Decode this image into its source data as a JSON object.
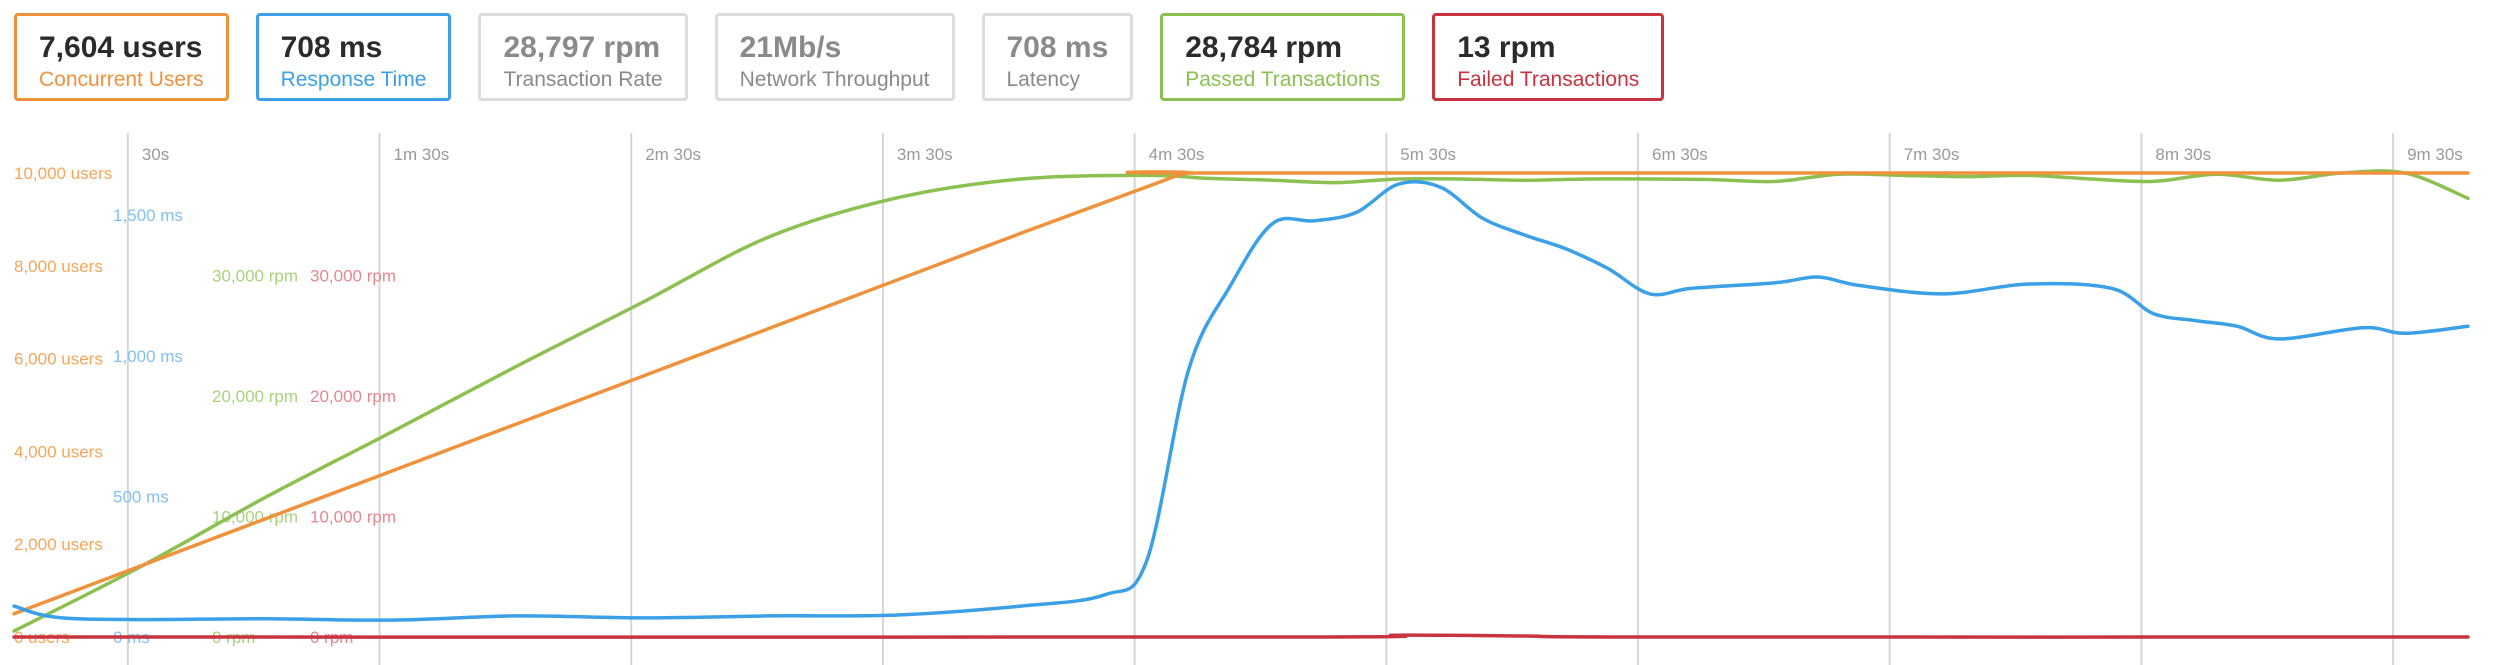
{
  "metrics": [
    {
      "value": "7,604 users",
      "label": "Concurrent Users",
      "color": "#f0913b",
      "border": "#f0913b",
      "muted": false
    },
    {
      "value": "708 ms",
      "label": "Response Time",
      "color": "#3ba0e6",
      "border": "#3ba0e6",
      "muted": false
    },
    {
      "value": "28,797 rpm",
      "label": "Transaction Rate",
      "color": "#8a8a8a",
      "border": "#dcdcdc",
      "muted": true
    },
    {
      "value": "21Mb/s",
      "label": "Network Throughput",
      "color": "#8a8a8a",
      "border": "#dcdcdc",
      "muted": true
    },
    {
      "value": "708 ms",
      "label": "Latency",
      "color": "#8a8a8a",
      "border": "#dcdcdc",
      "muted": true
    },
    {
      "value": "28,784 rpm",
      "label": "Passed Transactions",
      "color": "#8cc152",
      "border": "#8cc152",
      "muted": false
    },
    {
      "value": "13 rpm",
      "label": "Failed Transactions",
      "color": "#c9333f",
      "border": "#c9333f",
      "muted": false
    }
  ],
  "chart_data": {
    "type": "line",
    "x_unit": "seconds",
    "xlim": [
      0,
      585
    ],
    "grid": true,
    "time_ticks": [
      {
        "t": 30,
        "label": "30s"
      },
      {
        "t": 90,
        "label": "1m 30s"
      },
      {
        "t": 150,
        "label": "2m 30s"
      },
      {
        "t": 210,
        "label": "3m 30s"
      },
      {
        "t": 270,
        "label": "4m 30s"
      },
      {
        "t": 330,
        "label": "5m 30s"
      },
      {
        "t": 390,
        "label": "6m 30s"
      },
      {
        "t": 450,
        "label": "7m 30s"
      },
      {
        "t": 510,
        "label": "8m 30s"
      },
      {
        "t": 570,
        "label": "9m 30s"
      }
    ],
    "axes": {
      "users": {
        "ylim": [
          0,
          10000
        ],
        "color": "#f5a65b",
        "ticks": [
          {
            "v": 0,
            "label": "0 users"
          },
          {
            "v": 2000,
            "label": "2,000 users"
          },
          {
            "v": 4000,
            "label": "4,000 users"
          },
          {
            "v": 6000,
            "label": "6,000 users"
          },
          {
            "v": 8000,
            "label": "8,000 users"
          },
          {
            "v": 10000,
            "label": "10,000 users"
          }
        ]
      },
      "response": {
        "ylim": [
          0,
          1650
        ],
        "color": "#82c1ef",
        "ticks": [
          {
            "v": 0,
            "label": "0 ms"
          },
          {
            "v": 500,
            "label": "500 ms"
          },
          {
            "v": 1000,
            "label": "1,000 ms"
          },
          {
            "v": 1500,
            "label": "1,500 ms"
          }
        ]
      },
      "passed": {
        "ylim": [
          0,
          38500
        ],
        "color": "#a8d27a",
        "ticks": [
          {
            "v": 0,
            "label": "0 rpm"
          },
          {
            "v": 10000,
            "label": "10,000 rpm"
          },
          {
            "v": 20000,
            "label": "20,000 rpm"
          },
          {
            "v": 30000,
            "label": "30,000 rpm"
          }
        ]
      },
      "failed": {
        "ylim": [
          0,
          38500
        ],
        "color": "#e58790",
        "ticks": [
          {
            "v": 0,
            "label": "0 rpm"
          },
          {
            "v": 10000,
            "label": "10,000 rpm"
          },
          {
            "v": 20000,
            "label": "20,000 rpm"
          },
          {
            "v": 30000,
            "label": "30,000 rpm"
          }
        ]
      }
    },
    "series": [
      {
        "name": "Concurrent Users",
        "axis": "users",
        "color": "#f0913b",
        "x": [
          0,
          60,
          120,
          180,
          240,
          270,
          280,
          290,
          585
        ],
        "y": [
          500,
          2550,
          4600,
          6650,
          8700,
          9700,
          10000,
          10000,
          10000
        ]
      },
      {
        "name": "Response Time",
        "axis": "response",
        "color": "#3ba0e6",
        "x": [
          0,
          10,
          30,
          60,
          90,
          120,
          150,
          180,
          210,
          240,
          260,
          270,
          280,
          290,
          300,
          310,
          320,
          330,
          340,
          350,
          360,
          370,
          380,
          390,
          400,
          420,
          430,
          440,
          460,
          480,
          500,
          510,
          520,
          530,
          540,
          560,
          570,
          585
        ],
        "y": [
          110,
          70,
          62,
          65,
          60,
          75,
          68,
          75,
          78,
          110,
          150,
          270,
          950,
          1250,
          1470,
          1480,
          1510,
          1610,
          1600,
          1490,
          1430,
          1380,
          1310,
          1220,
          1240,
          1260,
          1280,
          1250,
          1220,
          1255,
          1240,
          1150,
          1125,
          1105,
          1060,
          1100,
          1080,
          1105
        ]
      },
      {
        "name": "Passed Transactions",
        "axis": "passed",
        "color": "#8cc152",
        "x": [
          0,
          30,
          60,
          90,
          120,
          150,
          180,
          210,
          240,
          270,
          285,
          300,
          315,
          330,
          345,
          360,
          375,
          390,
          405,
          420,
          435,
          450,
          465,
          480,
          495,
          510,
          525,
          540,
          555,
          570,
          585
        ],
        "y": [
          500,
          5800,
          11600,
          17000,
          22500,
          27800,
          33200,
          36400,
          38000,
          38300,
          38050,
          37900,
          37700,
          38000,
          38000,
          37900,
          38000,
          38000,
          37950,
          37800,
          38400,
          38300,
          38200,
          38300,
          38000,
          37800,
          38400,
          37900,
          38500,
          38500,
          36400
        ]
      },
      {
        "name": "Failed Transactions",
        "axis": "failed",
        "color": "#c9333f",
        "x": [
          0,
          300,
          330,
          360,
          390,
          585
        ],
        "y": [
          0,
          0,
          150,
          80,
          0,
          0
        ]
      }
    ]
  }
}
